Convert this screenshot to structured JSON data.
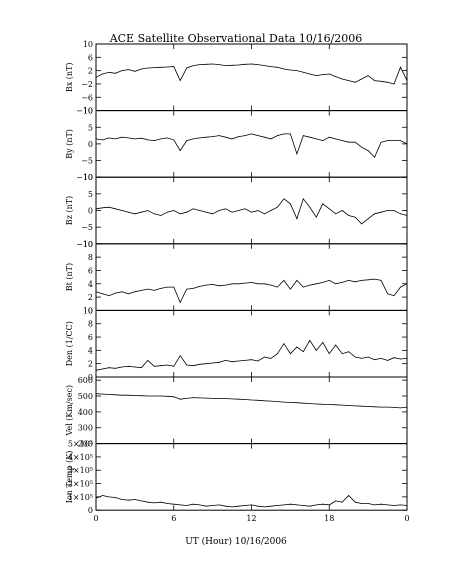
{
  "page": {
    "title": "ACE Satellite Observational Data   10/16/2006",
    "xlabel": "UT (Hour)   10/16/2006"
  },
  "chart_data": [
    {
      "type": "line",
      "ylabel": "Bx (nT)",
      "ylim": [
        -10,
        10
      ],
      "yticks": [
        "10",
        "6",
        "2",
        "−2",
        "−6",
        "−10"
      ],
      "ytick_values": [
        10,
        6,
        2,
        -2,
        -6,
        -10
      ],
      "xlim": [
        0,
        24
      ],
      "xticks": [
        "0",
        "6",
        "12",
        "18",
        "0"
      ],
      "xtick_values": [
        0,
        6,
        12,
        18,
        24
      ],
      "x": [
        0,
        0.5,
        1,
        1.5,
        2,
        2.5,
        3,
        3.5,
        4,
        4.5,
        5,
        5.5,
        6,
        6.5,
        7,
        7.5,
        8,
        8.5,
        9,
        9.5,
        10,
        10.5,
        11,
        11.5,
        12,
        12.5,
        13,
        13.5,
        14,
        14.5,
        15,
        15.5,
        16,
        16.5,
        17,
        17.5,
        18,
        18.5,
        19,
        19.5,
        20,
        20.5,
        21,
        21.5,
        22,
        22.5,
        23,
        23.5,
        24
      ],
      "values": [
        0,
        1,
        1.5,
        1.2,
        2,
        2.3,
        1.8,
        2.5,
        2.8,
        2.9,
        3,
        3.1,
        3.2,
        -1,
        2.8,
        3.5,
        3.8,
        3.9,
        4,
        3.8,
        3.5,
        3.6,
        3.7,
        3.9,
        4,
        3.8,
        3.5,
        3.2,
        3,
        2.5,
        2.2,
        2.0,
        1.5,
        1.0,
        0.5,
        0.8,
        1.0,
        0.2,
        -0.5,
        -1,
        -1.5,
        -0.5,
        0.5,
        -1.0,
        -1.2,
        -1.5,
        -2,
        3,
        -1
      ]
    },
    {
      "type": "line",
      "ylabel": "By (nT)",
      "ylim": [
        -10,
        10
      ],
      "yticks": [
        "10",
        "5",
        "0",
        "−5",
        "−10"
      ],
      "ytick_values": [
        10,
        5,
        0,
        -5,
        -10
      ],
      "xlim": [
        0,
        24
      ],
      "xticks": [
        "0",
        "6",
        "12",
        "18",
        "0"
      ],
      "xtick_values": [
        0,
        6,
        12,
        18,
        24
      ],
      "x": [
        0,
        0.5,
        1,
        1.5,
        2,
        2.5,
        3,
        3.5,
        4,
        4.5,
        5,
        5.5,
        6,
        6.5,
        7,
        7.5,
        8,
        8.5,
        9,
        9.5,
        10,
        10.5,
        11,
        11.5,
        12,
        12.5,
        13,
        13.5,
        14,
        14.5,
        15,
        15.5,
        16,
        16.5,
        17,
        17.5,
        18,
        18.5,
        19,
        19.5,
        20,
        20.5,
        21,
        21.5,
        22,
        22.5,
        23,
        23.5,
        24
      ],
      "values": [
        1.5,
        1.2,
        1.8,
        1.5,
        2,
        1.8,
        1.5,
        1.7,
        1.2,
        1,
        1.5,
        1.8,
        1.2,
        -2,
        1,
        1.5,
        1.8,
        2,
        2.2,
        2.5,
        2.0,
        1.5,
        2.2,
        2.5,
        3,
        2.5,
        2,
        1.5,
        2.5,
        3,
        3,
        -3,
        2.5,
        2,
        1.5,
        1,
        2,
        1.5,
        1,
        0.5,
        0.5,
        -1,
        -2,
        -4,
        0.5,
        1,
        1,
        1,
        0
      ]
    },
    {
      "type": "line",
      "ylabel": "Bz (nT)",
      "ylim": [
        -10,
        10
      ],
      "yticks": [
        "10",
        "5",
        "0",
        "−5",
        "−10"
      ],
      "ytick_values": [
        10,
        5,
        0,
        -5,
        -10
      ],
      "xlim": [
        0,
        24
      ],
      "xticks": [
        "0",
        "6",
        "12",
        "18",
        "0"
      ],
      "xtick_values": [
        0,
        6,
        12,
        18,
        24
      ],
      "x": [
        0,
        0.5,
        1,
        1.5,
        2,
        2.5,
        3,
        3.5,
        4,
        4.5,
        5,
        5.5,
        6,
        6.5,
        7,
        7.5,
        8,
        8.5,
        9,
        9.5,
        10,
        10.5,
        11,
        11.5,
        12,
        12.5,
        13,
        13.5,
        14,
        14.5,
        15,
        15.5,
        16,
        16.5,
        17,
        17.5,
        18,
        18.5,
        19,
        19.5,
        20,
        20.5,
        21,
        21.5,
        22,
        22.5,
        23,
        23.5,
        24
      ],
      "values": [
        0.5,
        0.8,
        1,
        0.5,
        0,
        -0.5,
        -1,
        -0.5,
        0,
        -1,
        -1.5,
        -0.5,
        0,
        -1,
        -0.5,
        0.5,
        0,
        -0.5,
        -1,
        0,
        0.5,
        -0.5,
        0,
        0.5,
        -0.5,
        0,
        -1,
        0,
        1,
        3.5,
        2,
        -2.5,
        3.5,
        1,
        -2,
        2,
        0.5,
        -1,
        0,
        -1.5,
        -2,
        -4,
        -2.5,
        -1,
        -0.5,
        0,
        0,
        -1,
        -1.5
      ]
    },
    {
      "type": "line",
      "ylabel": "Bt (nT)",
      "ylim": [
        0,
        10
      ],
      "yticks": [
        "10",
        "8",
        "6",
        "4",
        "2",
        "0"
      ],
      "ytick_values": [
        10,
        8,
        6,
        4,
        2,
        0
      ],
      "xlim": [
        0,
        24
      ],
      "xticks": [
        "0",
        "6",
        "12",
        "18",
        "0"
      ],
      "xtick_values": [
        0,
        6,
        12,
        18,
        24
      ],
      "x": [
        0,
        0.5,
        1,
        1.5,
        2,
        2.5,
        3,
        3.5,
        4,
        4.5,
        5,
        5.5,
        6,
        6.5,
        7,
        7.5,
        8,
        8.5,
        9,
        9.5,
        10,
        10.5,
        11,
        11.5,
        12,
        12.5,
        13,
        13.5,
        14,
        14.5,
        15,
        15.5,
        16,
        16.5,
        17,
        17.5,
        18,
        18.5,
        19,
        19.5,
        20,
        20.5,
        21,
        21.5,
        22,
        22.5,
        23,
        23.5,
        24
      ],
      "values": [
        2.8,
        2.5,
        2.2,
        2.6,
        2.8,
        2.5,
        2.8,
        3,
        3.2,
        3,
        3.3,
        3.5,
        3.5,
        1.2,
        3.2,
        3.3,
        3.6,
        3.8,
        3.9,
        3.7,
        3.8,
        4,
        4,
        4.1,
        4.2,
        4.0,
        4,
        3.8,
        3.5,
        4.5,
        3.2,
        4.5,
        3.5,
        3.8,
        4,
        4.2,
        4.5,
        4.0,
        4.2,
        4.5,
        4.3,
        4.5,
        4.6,
        4.7,
        4.5,
        2.5,
        2.2,
        3.5,
        4
      ]
    },
    {
      "type": "line",
      "ylabel": "Den (1/CC)",
      "ylim": [
        0,
        10
      ],
      "yticks": [
        "10",
        "8",
        "6",
        "4",
        "2",
        "0"
      ],
      "ytick_values": [
        10,
        8,
        6,
        4,
        2,
        0
      ],
      "xlim": [
        0,
        24
      ],
      "xticks": [
        "0",
        "6",
        "12",
        "18",
        "0"
      ],
      "xtick_values": [
        0,
        6,
        12,
        18,
        24
      ],
      "x": [
        0,
        0.5,
        1,
        1.5,
        2,
        2.5,
        3,
        3.5,
        4,
        4.5,
        5,
        5.5,
        6,
        6.5,
        7,
        7.5,
        8,
        8.5,
        9,
        9.5,
        10,
        10.5,
        11,
        11.5,
        12,
        12.5,
        13,
        13.5,
        14,
        14.5,
        15,
        15.5,
        16,
        16.5,
        17,
        17.5,
        18,
        18.5,
        19,
        19.5,
        20,
        20.5,
        21,
        21.5,
        22,
        22.5,
        23,
        23.5,
        24
      ],
      "values": [
        1,
        1.2,
        1.4,
        1.3,
        1.5,
        1.6,
        1.5,
        1.4,
        2.5,
        1.6,
        1.7,
        1.8,
        1.6,
        3.2,
        1.8,
        1.7,
        1.9,
        2,
        2.1,
        2.2,
        2.5,
        2.3,
        2.4,
        2.5,
        2.6,
        2.4,
        3.0,
        2.8,
        3.5,
        5.0,
        3.5,
        4.5,
        3.8,
        5.5,
        4.0,
        5.2,
        3.5,
        4.8,
        3.5,
        3.8,
        3.0,
        2.8,
        3,
        2.6,
        2.8,
        2.5,
        2.9,
        2.7,
        2.8
      ]
    },
    {
      "type": "line",
      "ylabel": "Vel (Km/sec)",
      "ylim": [
        200,
        620
      ],
      "yticks": [
        "600",
        "500",
        "400",
        "300",
        "200"
      ],
      "ytick_values": [
        600,
        500,
        400,
        300,
        200
      ],
      "xlim": [
        0,
        24
      ],
      "xticks": [
        "0",
        "6",
        "12",
        "18",
        "0"
      ],
      "xtick_values": [
        0,
        6,
        12,
        18,
        24
      ],
      "x": [
        0,
        0.5,
        1,
        1.5,
        2,
        2.5,
        3,
        3.5,
        4,
        4.5,
        5,
        5.5,
        6,
        6.5,
        7,
        7.5,
        8,
        8.5,
        9,
        9.5,
        10,
        10.5,
        11,
        11.5,
        12,
        12.5,
        13,
        13.5,
        14,
        14.5,
        15,
        15.5,
        16,
        16.5,
        17,
        17.5,
        18,
        18.5,
        19,
        19.5,
        20,
        20.5,
        21,
        21.5,
        22,
        22.5,
        23,
        23.5,
        24
      ],
      "values": [
        515,
        512,
        510,
        508,
        505,
        505,
        503,
        502,
        500,
        500,
        500,
        498,
        495,
        480,
        485,
        490,
        488,
        487,
        485,
        485,
        484,
        482,
        480,
        478,
        475,
        473,
        470,
        468,
        465,
        462,
        460,
        458,
        455,
        452,
        450,
        448,
        447,
        445,
        443,
        440,
        438,
        436,
        434,
        432,
        430,
        430,
        428,
        425,
        430
      ]
    },
    {
      "type": "line",
      "ylabel": "Ion Temp (K)",
      "ylim": [
        0,
        500000
      ],
      "yticks": [
        "5×10⁵",
        "4×10⁵",
        "3×10⁵",
        "2×10⁵",
        "1×10⁵",
        "0"
      ],
      "ytick_values": [
        500000,
        400000,
        300000,
        200000,
        100000,
        0
      ],
      "xlim": [
        0,
        24
      ],
      "xticks": [
        "0",
        "6",
        "12",
        "18",
        "0"
      ],
      "xtick_values": [
        0,
        6,
        12,
        18,
        24
      ],
      "x": [
        0,
        0.5,
        1,
        1.5,
        2,
        2.5,
        3,
        3.5,
        4,
        4.5,
        5,
        5.5,
        6,
        6.5,
        7,
        7.5,
        8,
        8.5,
        9,
        9.5,
        10,
        10.5,
        11,
        11.5,
        12,
        12.5,
        13,
        13.5,
        14,
        14.5,
        15,
        15.5,
        16,
        16.5,
        17,
        17.5,
        18,
        18.5,
        19,
        19.5,
        20,
        20.5,
        21,
        21.5,
        22,
        22.5,
        23,
        23.5,
        24
      ],
      "values": [
        90000,
        110000,
        100000,
        95000,
        80000,
        75000,
        80000,
        70000,
        60000,
        55000,
        60000,
        50000,
        45000,
        40000,
        35000,
        45000,
        40000,
        30000,
        35000,
        40000,
        30000,
        25000,
        30000,
        35000,
        40000,
        30000,
        25000,
        30000,
        35000,
        40000,
        45000,
        40000,
        35000,
        30000,
        40000,
        45000,
        40000,
        70000,
        60000,
        110000,
        60000,
        50000,
        50000,
        40000,
        45000,
        40000,
        35000,
        40000,
        35000
      ]
    }
  ]
}
